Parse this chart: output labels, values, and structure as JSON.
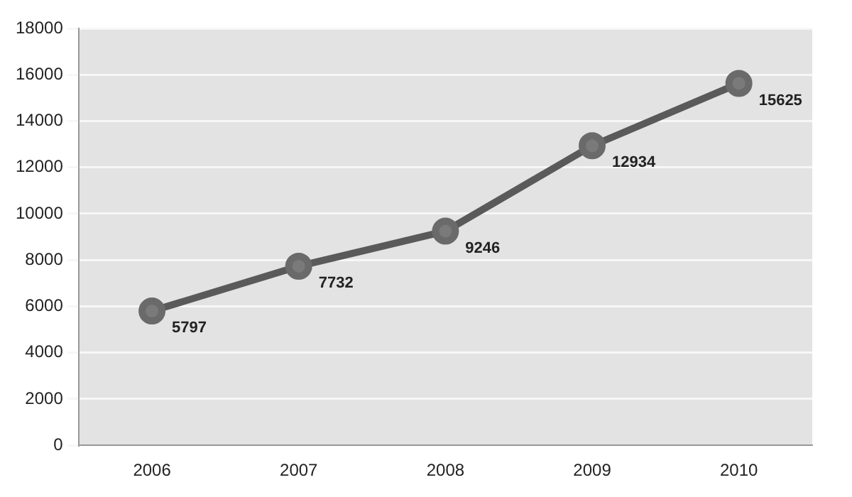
{
  "chart_data": {
    "type": "line",
    "categories": [
      "2006",
      "2007",
      "2008",
      "2009",
      "2010"
    ],
    "series": [
      {
        "color": "#5a5a5a",
        "values": [
          5797,
          7732,
          9246,
          12934,
          15625
        ]
      }
    ],
    "ylim": [
      0,
      18000
    ],
    "yticks": [
      0,
      2000,
      4000,
      6000,
      8000,
      10000,
      12000,
      14000,
      16000,
      18000
    ],
    "grid": "y",
    "legend": false,
    "marker": "circle",
    "data_labels": true
  }
}
